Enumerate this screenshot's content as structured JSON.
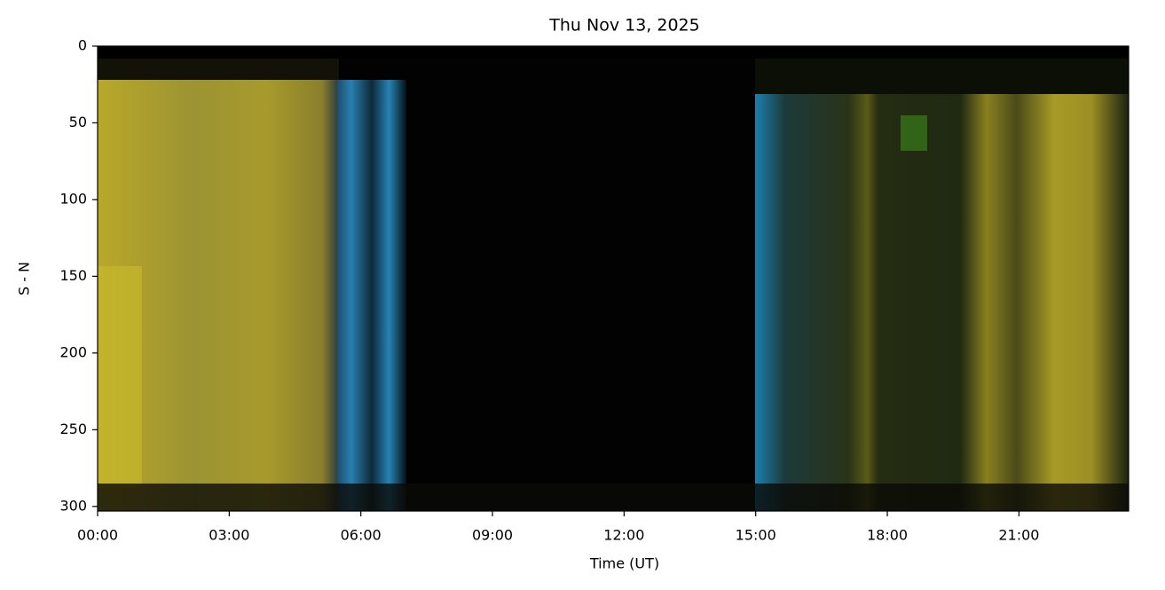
{
  "chart_data": {
    "type": "image",
    "title": "Thu Nov 13, 2025",
    "xlabel": "Time (UT)",
    "ylabel": "S - N",
    "xlim": [
      0,
      23.5
    ],
    "xticks": [
      {
        "value": 0,
        "label": "00:00"
      },
      {
        "value": 3,
        "label": "03:00"
      },
      {
        "value": 6,
        "label": "06:00"
      },
      {
        "value": 9,
        "label": "09:00"
      },
      {
        "value": 12,
        "label": "12:00"
      },
      {
        "value": 15,
        "label": "15:00"
      },
      {
        "value": 18,
        "label": "18:00"
      },
      {
        "value": 21,
        "label": "21:00"
      }
    ],
    "ylim": [
      303,
      0
    ],
    "yticks": [
      0,
      50,
      100,
      150,
      200,
      250,
      300
    ]
  }
}
